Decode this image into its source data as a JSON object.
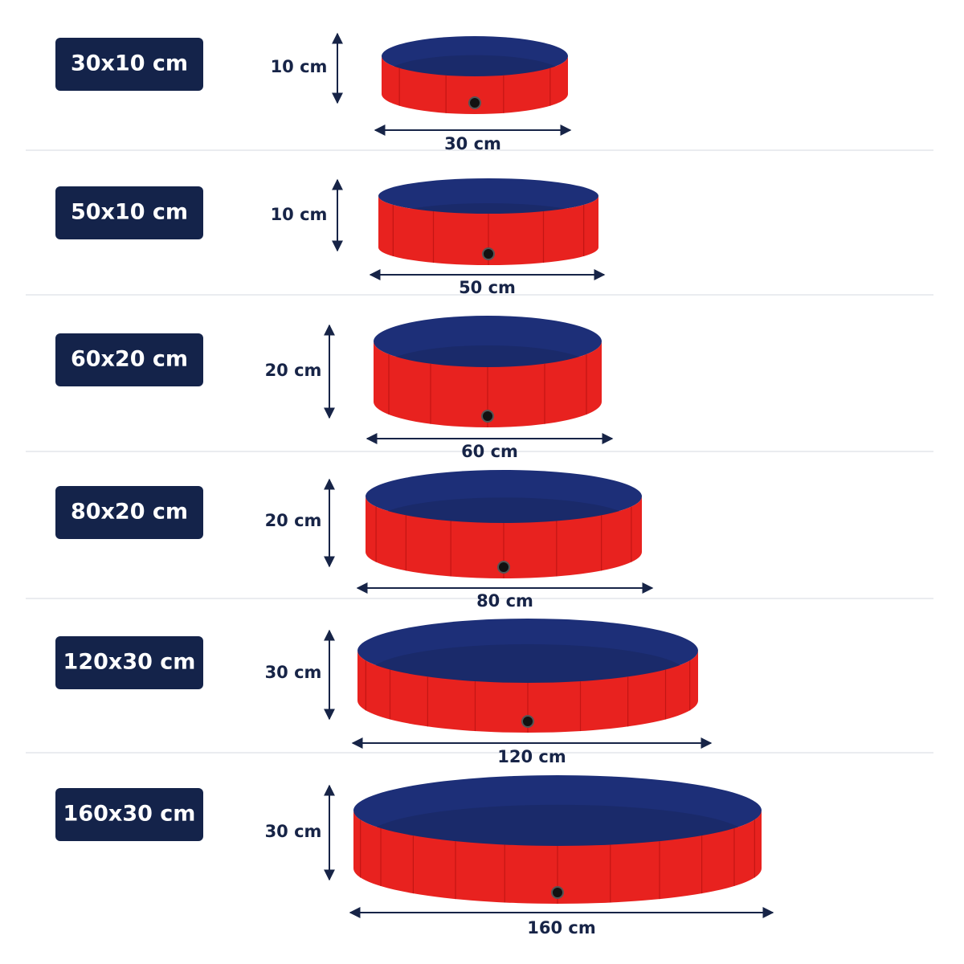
{
  "rows": [
    {
      "label": "30x10 cm",
      "height": "10 cm",
      "width": "30 cm"
    },
    {
      "label": "50x10 cm",
      "height": "10 cm",
      "width": "50 cm"
    },
    {
      "label": "60x20 cm",
      "height": "20 cm",
      "width": "60 cm"
    },
    {
      "label": "80x20 cm",
      "height": "20 cm",
      "width": "80 cm"
    },
    {
      "label": "120x30 cm",
      "height": "30 cm",
      "width": "120 cm"
    },
    {
      "label": "160x30 cm",
      "height": "30 cm",
      "width": "160 cm"
    }
  ]
}
